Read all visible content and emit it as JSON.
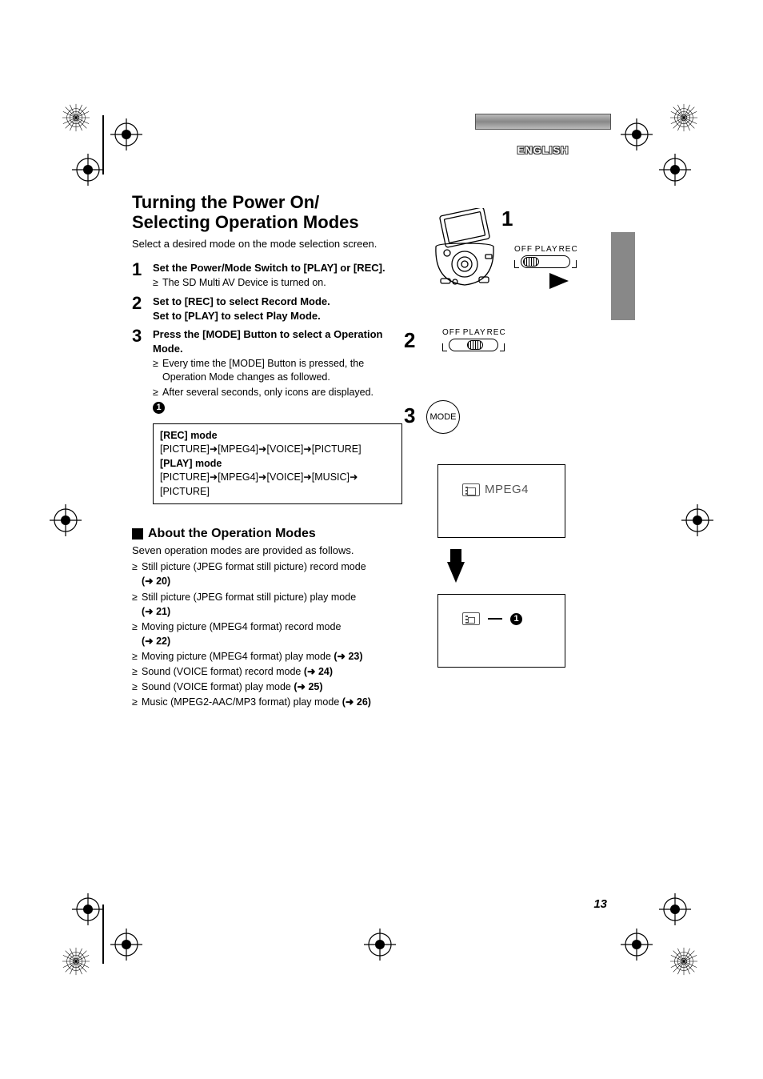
{
  "lang_label": "ENGLISH",
  "title_line1": "Turning the Power On/",
  "title_line2": "Selecting Operation Modes",
  "subtitle": "Select a desired mode on the mode selection screen.",
  "steps": [
    {
      "num": "1",
      "head": "Set the Power/Mode Switch to [PLAY] or [REC].",
      "subs": [
        "The SD Multi AV Device is turned on."
      ]
    },
    {
      "num": "2",
      "head_a": "Set to [REC] to select Record Mode.",
      "head_b": "Set to [PLAY] to select Play Mode."
    },
    {
      "num": "3",
      "head": "Press the [MODE] Button to select a Operation Mode.",
      "subs": [
        "Every time the [MODE] Button is pressed, the Operation Mode changes as followed.",
        "After several seconds, only icons are displayed."
      ]
    }
  ],
  "circ_ref": "1",
  "mode_box": {
    "rec_label": "[REC] mode",
    "rec_seq": "[PICTURE]➜[MPEG4]➜[VOICE]➜[PICTURE]",
    "play_label": "[PLAY] mode",
    "play_seq_a": "[PICTURE]➜[MPEG4]➜[VOICE]➜[MUSIC]➜",
    "play_seq_b": "[PICTURE]"
  },
  "section": {
    "title": "About the Operation Modes",
    "intro": "Seven operation modes are provided as follows.",
    "items": [
      {
        "text": "Still picture (JPEG format still picture) record mode",
        "ref": "20",
        "ref_newline": true
      },
      {
        "text": "Still picture (JPEG format still picture) play mode",
        "ref": "21",
        "ref_newline": true
      },
      {
        "text": "Moving picture (MPEG4 format) record mode",
        "ref": "22",
        "ref_newline": true
      },
      {
        "text": "Moving picture (MPEG4 format) play mode ",
        "ref": "23",
        "ref_newline": false
      },
      {
        "text": "Sound (VOICE format) record mode ",
        "ref": "24",
        "ref_newline": false
      },
      {
        "text": "Sound (VOICE format) play mode ",
        "ref": "25",
        "ref_newline": false
      },
      {
        "text": "Music (MPEG2-AAC/MP3 format) play mode ",
        "ref": "26",
        "ref_newline": false
      }
    ]
  },
  "switch_labels": {
    "off": "OFF",
    "play": "PLAY",
    "rec": "REC"
  },
  "fig_nums": {
    "f1": "1",
    "f2": "2",
    "f3": "3"
  },
  "mode_btn": "MODE",
  "mpeg_text": "MPEG4",
  "screen_ref": "1",
  "page_num": "13",
  "colors": {
    "text": "#000000",
    "diagram_gray": "#5a5a5a",
    "bar_gradient": "#999999"
  }
}
